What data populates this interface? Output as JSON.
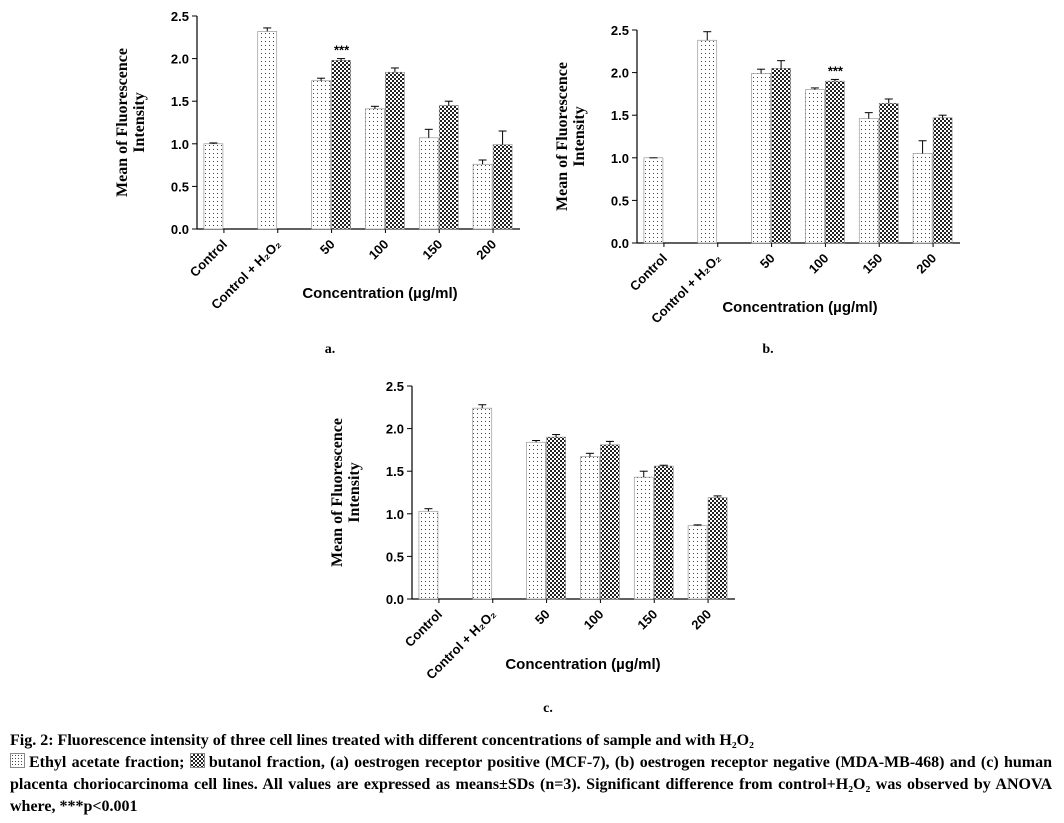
{
  "chart_data": [
    {
      "type": "bar",
      "panel_label": "a.",
      "ylabel": [
        "Mean of Fluorescence",
        "Intensity"
      ],
      "xlabel": "Concentration (µg/ml)",
      "categories": [
        "Control",
        "Control + H₂O₂",
        "50",
        "100",
        "150",
        "200"
      ],
      "ylim": [
        0,
        2.5
      ],
      "yticks": [
        {
          "value": 0,
          "label": "0.0"
        },
        0.5,
        {
          "value": 1,
          "label": "1.0"
        },
        1.5,
        {
          "value": 2,
          "label": "2.0"
        },
        2.5
      ],
      "series": [
        {
          "name": "Ethyl acetate fraction",
          "color": "#444444",
          "pattern": "dots",
          "values": [
            1.0,
            2.32,
            1.74,
            1.41,
            1.07,
            0.76
          ],
          "errors": [
            0.01,
            0.04,
            0.03,
            0.03,
            0.1,
            0.05
          ]
        },
        {
          "name": "butanol fraction",
          "color": "#222222",
          "pattern": "checker",
          "values": [
            null,
            null,
            1.98,
            1.84,
            1.45,
            0.99
          ],
          "errors": [
            null,
            null,
            0.02,
            0.05,
            0.05,
            0.16
          ]
        }
      ],
      "annotation": {
        "text": "***",
        "category": "50"
      }
    },
    {
      "type": "bar",
      "panel_label": "b.",
      "ylabel": [
        "Mean of Fluorescence",
        "Intensity"
      ],
      "xlabel": "Concentration (µg/ml)",
      "categories": [
        "Control",
        "Control + H₂O₂",
        "50",
        "100",
        "150",
        "200"
      ],
      "ylim": [
        0,
        2.5
      ],
      "yticks": [
        {
          "value": 0,
          "label": "0.0"
        },
        0.5,
        {
          "value": 1,
          "label": "1.0"
        },
        1.5,
        {
          "value": 2,
          "label": "2.0"
        },
        2.5
      ],
      "series": [
        {
          "color": "#444444",
          "pattern": "dots",
          "values": [
            1.0,
            2.38,
            1.99,
            1.8,
            1.46,
            1.05
          ],
          "errors": [
            0,
            0.1,
            0.05,
            0.02,
            0.07,
            0.15
          ]
        },
        {
          "color": "#222222",
          "pattern": "checker",
          "values": [
            null,
            null,
            2.05,
            1.9,
            1.64,
            1.47
          ],
          "errors": [
            null,
            null,
            0.09,
            0.02,
            0.05,
            0.03
          ]
        }
      ],
      "annotation": {
        "text": "***",
        "category": "100"
      }
    },
    {
      "type": "bar",
      "panel_label": "c.",
      "ylabel": [
        "Mean of Fluorescence",
        "Intensity"
      ],
      "xlabel": "Concentration (µg/ml)",
      "categories": [
        "Control",
        "Control + H₂O₂",
        "50",
        "100",
        "150",
        "200"
      ],
      "ylim": [
        0,
        2.5
      ],
      "yticks": [
        {
          "value": 0,
          "label": "0.0"
        },
        0.5,
        {
          "value": 1,
          "label": "1.0"
        },
        1.5,
        {
          "value": 2,
          "label": "2.0"
        },
        2.5
      ],
      "series": [
        {
          "color": "#444444",
          "pattern": "dots",
          "values": [
            1.03,
            2.24,
            1.84,
            1.67,
            1.43,
            0.86
          ],
          "errors": [
            0.03,
            0.04,
            0.02,
            0.04,
            0.07,
            0.01
          ]
        },
        {
          "color": "#222222",
          "pattern": "checker",
          "values": [
            null,
            null,
            1.9,
            1.81,
            1.56,
            1.19
          ],
          "errors": [
            null,
            null,
            0.03,
            0.04,
            0.01,
            0.02
          ]
        }
      ]
    }
  ],
  "caption": {
    "title": "Fig. 2: Fluorescence intensity of three cell lines treated with different concentrations of sample and with H₂O₂",
    "separator": ";",
    "body": ", (a) oestrogen receptor positive (MCF-7), (b) oestrogen receptor negative (MDA-MB-468) and (c) human placenta choriocarcinoma cell lines. All values are expressed as means±SDs (n=3). Significant difference from control+H₂O₂ was observed by ANOVA where, ***p<0.001"
  }
}
